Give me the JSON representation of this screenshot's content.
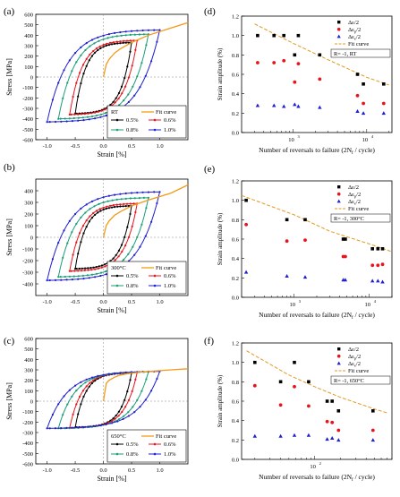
{
  "chart_data": [
    {
      "type": "line",
      "panel_label": "(a)",
      "xlabel": "Strain [%]",
      "ylabel": "Stress [MPa]",
      "xlim": [
        -1.2,
        1.5
      ],
      "ylim": [
        -600,
        600
      ],
      "xticks": [
        -1.0,
        -0.5,
        0.0,
        0.5,
        1.0
      ],
      "yticks": [
        -600,
        -500,
        -400,
        -300,
        -200,
        -100,
        0,
        100,
        200,
        300,
        400,
        500,
        600
      ],
      "legend": [
        "RT",
        "Fit curve",
        "0.5%",
        "0.6%",
        "0.8%",
        "1.0%"
      ],
      "legend_position": "bottom-right",
      "grid": false,
      "fit_curve": {
        "name": "Fit curve",
        "x": [
          0.0,
          0.05,
          0.1,
          0.2,
          0.3,
          0.5,
          0.8,
          1.2,
          1.5
        ],
        "y": [
          0,
          120,
          170,
          230,
          270,
          330,
          400,
          470,
          520
        ]
      },
      "series": [
        {
          "name": "0.5%",
          "amplitude": 0.5,
          "max_stress": 330,
          "min_stress": -350
        },
        {
          "name": "0.6%",
          "amplitude": 0.6,
          "max_stress": 350,
          "min_stress": -360
        },
        {
          "name": "0.8%",
          "amplitude": 0.8,
          "max_stress": 410,
          "min_stress": -400
        },
        {
          "name": "1.0%",
          "amplitude": 1.0,
          "max_stress": 450,
          "min_stress": -430
        }
      ]
    },
    {
      "type": "line",
      "panel_label": "(b)",
      "xlabel": "Strain [%]",
      "ylabel": "Stress [MPa]",
      "xlim": [
        -1.2,
        1.5
      ],
      "ylim": [
        -500,
        500
      ],
      "xticks": [
        -1.0,
        -0.5,
        0.0,
        0.5,
        1.0
      ],
      "yticks": [
        -400,
        -300,
        -200,
        -100,
        0,
        100,
        200,
        300,
        400
      ],
      "legend": [
        "300°C",
        "Fit curve",
        "0.5%",
        "0.6%",
        "0.8%",
        "1.0%"
      ],
      "legend_position": "bottom-right",
      "grid": false,
      "fit_curve": {
        "name": "Fit curve",
        "x": [
          0.0,
          0.05,
          0.1,
          0.2,
          0.3,
          0.5,
          0.8,
          1.2,
          1.5
        ],
        "y": [
          0,
          100,
          140,
          190,
          220,
          270,
          320,
          380,
          450
        ]
      },
      "series": [
        {
          "name": "0.5%",
          "amplitude": 0.5,
          "max_stress": 270,
          "min_stress": -270
        },
        {
          "name": "0.6%",
          "amplitude": 0.6,
          "max_stress": 290,
          "min_stress": -290
        },
        {
          "name": "0.8%",
          "amplitude": 0.8,
          "max_stress": 340,
          "min_stress": -340
        },
        {
          "name": "1.0%",
          "amplitude": 1.0,
          "max_stress": 390,
          "min_stress": -370
        }
      ]
    },
    {
      "type": "line",
      "panel_label": "(c)",
      "xlabel": "Strain [%]",
      "ylabel": "Stress [MPa]",
      "xlim": [
        -1.2,
        1.5
      ],
      "ylim": [
        -600,
        600
      ],
      "xticks": [
        -1.0,
        -0.5,
        0.0,
        0.5,
        1.0
      ],
      "yticks": [
        -600,
        -500,
        -400,
        -300,
        -200,
        -100,
        0,
        100,
        200,
        300,
        400,
        500,
        600
      ],
      "legend": [
        "650°C",
        "Fit curve",
        "0.5%",
        "0.6%",
        "0.8%",
        "1.0%"
      ],
      "legend_position": "bottom-right",
      "grid": false,
      "fit_curve": {
        "name": "Fit curve",
        "x": [
          0.0,
          0.05,
          0.1,
          0.2,
          0.3,
          0.5,
          0.8,
          1.2,
          1.5
        ],
        "y": [
          0,
          170,
          200,
          230,
          250,
          270,
          285,
          300,
          310
        ]
      },
      "series": [
        {
          "name": "0.5%",
          "amplitude": 0.5,
          "max_stress": 270,
          "min_stress": -250
        },
        {
          "name": "0.6%",
          "amplitude": 0.6,
          "max_stress": 275,
          "min_stress": -255
        },
        {
          "name": "0.8%",
          "amplitude": 0.8,
          "max_stress": 280,
          "min_stress": -260
        },
        {
          "name": "1.0%",
          "amplitude": 1.0,
          "max_stress": 285,
          "min_stress": -260
        }
      ]
    },
    {
      "type": "scatter",
      "panel_label": "(d)",
      "xlabel": "Number of reversals to failure (2N",
      "xlabel_sub": "f",
      "xlabel_tail": " / cycle)",
      "ylabel": "Strain amplitude (%)",
      "xscale": "log",
      "xlim": [
        200,
        22000
      ],
      "ylim": [
        0.0,
        1.2
      ],
      "yticks": [
        0.0,
        0.2,
        0.4,
        0.6,
        0.8,
        1.0,
        1.2
      ],
      "xtick_values": [
        1000,
        10000
      ],
      "xtick_labels": [
        "10",
        "10"
      ],
      "xtick_exponents": [
        "3",
        "4"
      ],
      "legend": [
        "Δε/2",
        "Δεp/2",
        "Δεe/2",
        "Fit curve",
        "R= -1, RT"
      ],
      "legend_position": "top-right",
      "series": [
        {
          "name": "Δε/2",
          "marker": "square",
          "x": [
            330,
            550,
            750,
            1050,
            1180,
            2300,
            7500,
            9000,
            17000
          ],
          "y": [
            1.0,
            1.0,
            1.0,
            0.8,
            1.0,
            0.8,
            0.6,
            0.5,
            0.5
          ]
        },
        {
          "name": "Δεp/2",
          "marker": "circle",
          "x": [
            330,
            550,
            750,
            1050,
            1180,
            2300,
            7500,
            9000,
            17000
          ],
          "y": [
            0.72,
            0.72,
            0.74,
            0.52,
            0.71,
            0.55,
            0.38,
            0.3,
            0.3
          ]
        },
        {
          "name": "Δεe/2",
          "marker": "triangle",
          "x": [
            330,
            550,
            750,
            1050,
            1180,
            2300,
            7500,
            9000,
            17000
          ],
          "y": [
            0.28,
            0.28,
            0.27,
            0.29,
            0.27,
            0.26,
            0.22,
            0.2,
            0.2
          ]
        }
      ],
      "fit_curve": {
        "name": "Fit curve",
        "x": [
          300,
          1000,
          3000,
          10000,
          20000
        ],
        "y": [
          1.12,
          0.92,
          0.75,
          0.57,
          0.49
        ]
      }
    },
    {
      "type": "scatter",
      "panel_label": "(e)",
      "xlabel": "Number of reversals to failure (2N",
      "xlabel_sub": "f",
      "xlabel_tail": " / cycle)",
      "ylabel": "Strain amplitude (%)",
      "xscale": "log",
      "xlim": [
        200,
        20000
      ],
      "ylim": [
        0.0,
        1.2
      ],
      "yticks": [
        0.0,
        0.2,
        0.4,
        0.6,
        0.8,
        1.0,
        1.2
      ],
      "xtick_values": [
        1000,
        10000
      ],
      "xtick_labels": [
        "10",
        "10"
      ],
      "xtick_exponents": [
        "3",
        "4"
      ],
      "legend": [
        "Δε/2",
        "Δεp/2",
        "Δεe/2",
        "Fit curve",
        "R= -1, 300°C"
      ],
      "legend_position": "top-right",
      "series": [
        {
          "name": "Δε/2",
          "marker": "square",
          "x": [
            230,
            800,
            1400,
            4500,
            4800,
            11000,
            13000,
            15000
          ],
          "y": [
            1.0,
            0.8,
            0.8,
            0.6,
            0.6,
            0.5,
            0.5,
            0.5
          ]
        },
        {
          "name": "Δεp/2",
          "marker": "circle",
          "x": [
            230,
            800,
            1400,
            4500,
            4800,
            11000,
            13000,
            15000
          ],
          "y": [
            0.75,
            0.58,
            0.59,
            0.42,
            0.42,
            0.33,
            0.33,
            0.34
          ]
        },
        {
          "name": "Δεe/2",
          "marker": "triangle",
          "x": [
            230,
            800,
            1400,
            4500,
            4800,
            11000,
            13000,
            15000
          ],
          "y": [
            0.26,
            0.22,
            0.21,
            0.18,
            0.18,
            0.17,
            0.17,
            0.16
          ]
        }
      ],
      "fit_curve": {
        "name": "Fit curve",
        "x": [
          200,
          1000,
          3000,
          10000,
          20000
        ],
        "y": [
          1.05,
          0.85,
          0.68,
          0.55,
          0.47
        ]
      }
    },
    {
      "type": "scatter",
      "panel_label": "(f)",
      "xlabel": "Number of reversals to failure (2N",
      "xlabel_sub": "f",
      "xlabel_tail": " / cycle)",
      "ylabel": "Strain amplitude (%)",
      "xscale": "log",
      "xlim": [
        14,
        800
      ],
      "ylim": [
        0.0,
        1.2
      ],
      "yticks": [
        0.0,
        0.2,
        0.4,
        0.6,
        0.8,
        1.0,
        1.2
      ],
      "xtick_values": [
        100
      ],
      "xtick_labels": [
        "10"
      ],
      "xtick_exponents": [
        "2"
      ],
      "legend": [
        "Δε/2",
        "Δεp/2",
        "Δεe/2",
        "Fit curve",
        "R= -1, 650°C"
      ],
      "legend_position": "top-right",
      "series": [
        {
          "name": "Δε/2",
          "marker": "square",
          "x": [
            20,
            40,
            58,
            85,
            140,
            160,
            190,
            480
          ],
          "y": [
            1.0,
            0.8,
            1.0,
            0.8,
            0.6,
            0.6,
            0.5,
            0.5
          ]
        },
        {
          "name": "Δεp/2",
          "marker": "circle",
          "x": [
            20,
            40,
            58,
            85,
            140,
            160,
            190,
            480
          ],
          "y": [
            0.76,
            0.56,
            0.75,
            0.55,
            0.39,
            0.38,
            0.3,
            0.3
          ]
        },
        {
          "name": "Δεe/2",
          "marker": "triangle",
          "x": [
            20,
            40,
            58,
            85,
            140,
            160,
            190,
            480
          ],
          "y": [
            0.24,
            0.24,
            0.25,
            0.25,
            0.21,
            0.22,
            0.2,
            0.2
          ]
        }
      ],
      "fit_curve": {
        "name": "Fit curve",
        "x": [
          16,
          50,
          100,
          200,
          500,
          700
        ],
        "y": [
          1.12,
          0.87,
          0.75,
          0.64,
          0.52,
          0.48
        ]
      }
    }
  ],
  "colors": {
    "0.5%": "#000000",
    "0.6%": "#e8141c",
    "0.8%": "#1a9e77",
    "1.0%": "#1f1fd0",
    "fit": "#f39a17",
    "square": "#000000",
    "circle": "#e8141c",
    "triangle": "#1f1fd0",
    "fit_dashed": "#e09a20"
  }
}
